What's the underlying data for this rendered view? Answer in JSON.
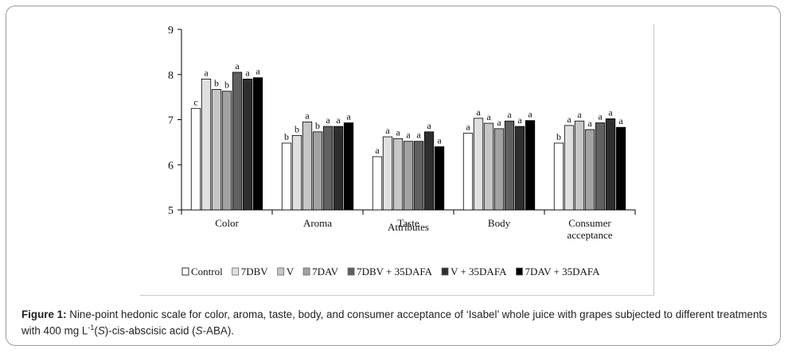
{
  "caption": {
    "label": "Figure 1:",
    "text_1": " Nine-point hedonic scale for color, aroma, taste, body, and consumer acceptance of ‘Isabel’ whole juice with grapes subjected to different treatments with 400 mg L",
    "superscript": "-1",
    "text_2": "(",
    "italic_s": "S",
    "text_3": ")-cis-abscisic acid (",
    "italic_s2": "S",
    "text_4": "-ABA)."
  },
  "chart_data": {
    "type": "bar",
    "title": "",
    "xlabel": "Attributes",
    "ylabel": "",
    "ylim": [
      5,
      9
    ],
    "yticks": [
      "5",
      "6",
      "7",
      "8",
      "9"
    ],
    "categories": [
      "Color",
      "Aroma",
      "Taste",
      "Body",
      "Consumer acceptance"
    ],
    "category_lines": [
      [
        "Color"
      ],
      [
        "Aroma"
      ],
      [
        "Taste"
      ],
      [
        "Body"
      ],
      [
        "Consumer",
        "acceptance"
      ]
    ],
    "series": [
      {
        "name": "Control",
        "color": "#ffffff",
        "values": [
          7.25,
          6.48,
          6.18,
          6.7,
          6.48
        ],
        "letters": [
          "c",
          "b",
          "a",
          "a",
          "b"
        ]
      },
      {
        "name": "7DBV",
        "color": "#e0e0e0",
        "values": [
          7.9,
          6.65,
          6.62,
          7.03,
          6.87
        ],
        "letters": [
          "a",
          "b",
          "a",
          "a",
          "a"
        ]
      },
      {
        "name": "V",
        "color": "#c6c6c6",
        "values": [
          7.67,
          6.95,
          6.58,
          6.92,
          6.97
        ],
        "letters": [
          "b",
          "a",
          "a",
          "a",
          "a"
        ]
      },
      {
        "name": "7DAV",
        "color": "#a2a2a2",
        "values": [
          7.63,
          6.73,
          6.52,
          6.8,
          6.78
        ],
        "letters": [
          "b",
          "b",
          "a",
          "a",
          "a"
        ]
      },
      {
        "name": "7DBV + 35DAFA",
        "color": "#606060",
        "values": [
          8.05,
          6.85,
          6.52,
          6.97,
          6.93
        ],
        "letters": [
          "a",
          "a",
          "a",
          "a",
          "a"
        ]
      },
      {
        "name": "V + 35DAFA",
        "color": "#2e2e2e",
        "values": [
          7.9,
          6.85,
          6.73,
          6.85,
          7.02
        ],
        "letters": [
          "a",
          "a",
          "a",
          "a",
          "a"
        ]
      },
      {
        "name": "7DAV + 35DAFA",
        "color": "#000000",
        "values": [
          7.93,
          6.93,
          6.4,
          6.98,
          6.83
        ],
        "letters": [
          "a",
          "a",
          "a",
          "a",
          "a"
        ]
      }
    ],
    "legend_position": "bottom"
  }
}
